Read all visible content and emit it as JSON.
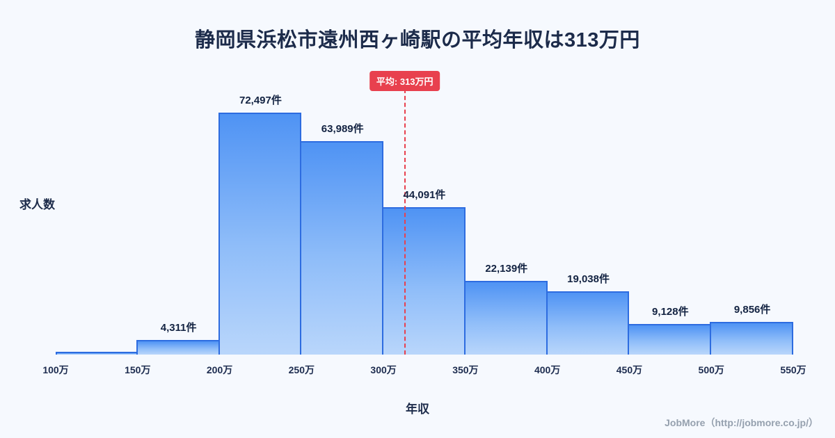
{
  "title": "静岡県浜松市遠州西ヶ崎駅の平均年収は313万円",
  "footer": "JobMore（http://jobmore.co.jp/）",
  "chart_data": {
    "type": "bar",
    "title": "静岡県浜松市遠州西ヶ崎駅の平均年収は313万円",
    "xlabel": "年収",
    "ylabel": "求人数",
    "tick_labels": [
      "100万",
      "150万",
      "200万",
      "250万",
      "300万",
      "350万",
      "400万",
      "450万",
      "500万",
      "550万"
    ],
    "x_range_man_yen": [
      100,
      550
    ],
    "bin_width_man_yen": 50,
    "values": [
      800,
      4311,
      72497,
      63989,
      44091,
      22139,
      19038,
      9128,
      9856
    ],
    "bar_labels": [
      "",
      "4,311件",
      "72,497件",
      "63,989件",
      "44,091件",
      "22,139件",
      "19,038件",
      "9,128件",
      "9,856件"
    ],
    "ylim": [
      0,
      85000
    ],
    "grid": false,
    "legend": "none",
    "average": {
      "label": "平均: 313万円",
      "value_man_yen": 313
    },
    "colors": {
      "bar_fill_top": "#4f93f4",
      "bar_fill_bottom": "#b9d6fb",
      "bar_border": "#2d6ce0",
      "average_line": "#e8404e",
      "title_text": "#1c2b4a",
      "background": "#f6f9fe",
      "footer_text": "#95a0ae"
    }
  }
}
